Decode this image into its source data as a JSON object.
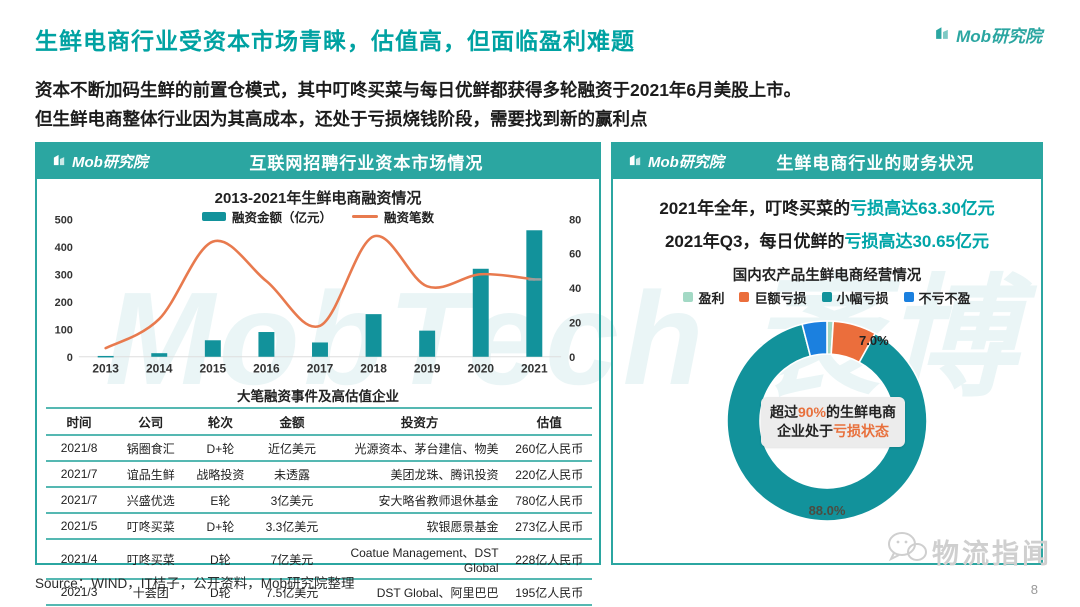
{
  "page": {
    "title": "生鲜电商行业受资本市场青睐，估值高，但面临盈利难题",
    "source": "Source：WIND，IT桔子，公开资料，Mob研究院整理",
    "page_number": "8",
    "watermark": "MobTech 袤博",
    "corner_watermark": "物流指闻"
  },
  "brand": {
    "name": "Mob研究院"
  },
  "intro": {
    "line1": "资本不断加码生鲜的前置仓模式，其中叮咚买菜与每日优鲜都获得多轮融资于2021年6月美股上市。",
    "line2": "但生鲜电商整体行业因为其高成本，还处于亏损烧钱阶段，需要找到新的赢利点"
  },
  "left_panel": {
    "header": {
      "logo": "Mob研究院",
      "title": "互联网招聘行业资本市场情况"
    }
  },
  "right_panel": {
    "header": {
      "logo": "Mob研究院",
      "title": "生鲜电商行业的财务状况"
    },
    "line1_prefix": "2021年全年，叮咚买菜的",
    "line1_highlight": "亏损高达63.30亿元",
    "line2_prefix": "2021年Q3，每日优鲜的",
    "line2_highlight": "亏损高达30.65亿元",
    "center_label": {
      "p1": "超过",
      "p2": "90%",
      "p3": "的生鲜电商企业处于",
      "p4": "亏损状态"
    }
  },
  "chart_data": [
    {
      "type": "bar",
      "subtype": "bar+line combo",
      "title": "2013-2021年生鲜电商融资情况",
      "categories": [
        "2013",
        "2014",
        "2015",
        "2016",
        "2017",
        "2018",
        "2019",
        "2020",
        "2021"
      ],
      "series": [
        {
          "name": "融资金额（亿元）",
          "type": "bar",
          "axis": "left",
          "values": [
            3,
            13,
            60,
            90,
            52,
            155,
            95,
            320,
            460
          ]
        },
        {
          "name": "融资笔数",
          "type": "line",
          "axis": "right",
          "values": [
            5,
            22,
            67,
            44,
            18,
            70,
            41,
            48,
            45
          ]
        }
      ],
      "left_axis": {
        "min": 0,
        "max": 500,
        "ticks": [
          0,
          100,
          200,
          300,
          400,
          500
        ]
      },
      "right_axis": {
        "min": 0,
        "max": 80,
        "ticks": [
          0,
          20,
          40,
          60,
          80
        ]
      },
      "legend_position": "top",
      "grid": false
    },
    {
      "type": "pie",
      "donut": true,
      "title": "国内农产品生鲜电商经营情况",
      "start_angle": "top",
      "direction": "clockwise",
      "legend_position": "top",
      "slices": [
        {
          "label": "盈利",
          "value": 1.0,
          "color": "#A3D9C5",
          "data_label": ""
        },
        {
          "label": "巨额亏损",
          "value": 7.0,
          "color": "#EB6E3C",
          "data_label": "7.0%"
        },
        {
          "label": "小幅亏损",
          "value": 88.0,
          "color": "#12929B",
          "data_label": "88.0%"
        },
        {
          "label": "不亏不盈",
          "value": 4.0,
          "color": "#1B80DF",
          "data_label": ""
        }
      ]
    },
    {
      "type": "table",
      "title": "大笔融资事件及高估值企业",
      "headers": [
        "时间",
        "公司",
        "轮次",
        "金额",
        "投资方",
        "估值"
      ],
      "rows": [
        [
          "2021/8",
          "锅圈食汇",
          "D+轮",
          "近亿美元",
          "光源资本、茅台建信、物美",
          "260亿人民币"
        ],
        [
          "2021/7",
          "谊品生鲜",
          "战略投资",
          "未透露",
          "美团龙珠、腾讯投资",
          "220亿人民币"
        ],
        [
          "2021/7",
          "兴盛优选",
          "E轮",
          "3亿美元",
          "安大略省教师退休基金",
          "780亿人民币"
        ],
        [
          "2021/5",
          "叮咚买菜",
          "D+轮",
          "3.3亿美元",
          "软银愿景基金",
          "273亿人民币"
        ],
        [
          "2021/4",
          "叮咚买菜",
          "D轮",
          "7亿美元",
          "Coatue Management、DST Global",
          "228亿人民币"
        ],
        [
          "2021/3",
          "十荟团",
          "D轮",
          "7.5亿美元",
          "DST Global、阿里巴巴",
          "195亿人民币"
        ]
      ]
    }
  ],
  "colors": {
    "banner_teal": "#2BA6A1",
    "bar_teal": "#12929B",
    "line_orange": "#E87A4E",
    "title_teal": "#00A2A2",
    "highlight_teal": "#00A5A8",
    "center_orange": "#E8703C",
    "table_line_teal": "#55B8B2"
  }
}
